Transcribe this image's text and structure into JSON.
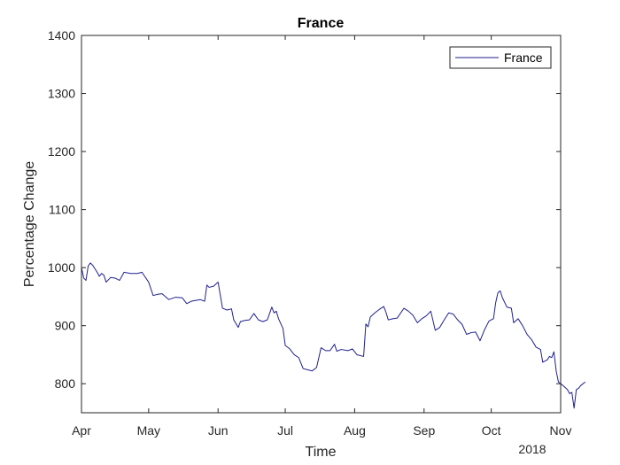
{
  "chart_data": {
    "type": "line",
    "title": "France",
    "xlabel": "Time",
    "ylabel": "Percentage Change",
    "x_year_label": "2018",
    "x_ticks": [
      "Apr",
      "May",
      "Jun",
      "Jul",
      "Aug",
      "Sep",
      "Oct",
      "Nov"
    ],
    "y_ticks": [
      "800",
      "900",
      "1000",
      "1100",
      "1200",
      "1300",
      "1400"
    ],
    "xlim": [
      "2018-04-01",
      "2018-11-01"
    ],
    "ylim": [
      750,
      1400
    ],
    "grid": false,
    "legend_position": "top-right",
    "series": [
      {
        "name": "France",
        "color": "#1f1f8f",
        "points": [
          [
            "2018-04-01",
            1000
          ],
          [
            "2018-04-02",
            982
          ],
          [
            "2018-04-03",
            978
          ],
          [
            "2018-04-04",
            1003
          ],
          [
            "2018-04-05",
            1008
          ],
          [
            "2018-04-06",
            1004
          ],
          [
            "2018-04-08",
            992
          ],
          [
            "2018-04-09",
            985
          ],
          [
            "2018-04-10",
            990
          ],
          [
            "2018-04-11",
            987
          ],
          [
            "2018-04-12",
            975
          ],
          [
            "2018-04-14",
            983
          ],
          [
            "2018-04-16",
            982
          ],
          [
            "2018-04-18",
            978
          ],
          [
            "2018-04-20",
            992
          ],
          [
            "2018-04-23",
            990
          ],
          [
            "2018-04-26",
            990
          ],
          [
            "2018-04-28",
            992
          ],
          [
            "2018-05-01",
            975
          ],
          [
            "2018-05-03",
            952
          ],
          [
            "2018-05-05",
            954
          ],
          [
            "2018-05-07",
            955
          ],
          [
            "2018-05-10",
            945
          ],
          [
            "2018-05-13",
            949
          ],
          [
            "2018-05-16",
            948
          ],
          [
            "2018-05-18",
            938
          ],
          [
            "2018-05-20",
            942
          ],
          [
            "2018-05-24",
            945
          ],
          [
            "2018-05-26",
            942
          ],
          [
            "2018-05-27",
            970
          ],
          [
            "2018-05-28",
            966
          ],
          [
            "2018-05-30",
            968
          ],
          [
            "2018-06-01",
            975
          ],
          [
            "2018-06-03",
            930
          ],
          [
            "2018-06-05",
            927
          ],
          [
            "2018-06-07",
            929
          ],
          [
            "2018-06-08",
            910
          ],
          [
            "2018-06-10",
            897
          ],
          [
            "2018-06-11",
            907
          ],
          [
            "2018-06-13",
            909
          ],
          [
            "2018-06-15",
            910
          ],
          [
            "2018-06-17",
            921
          ],
          [
            "2018-06-19",
            910
          ],
          [
            "2018-06-21",
            907
          ],
          [
            "2018-06-23",
            910
          ],
          [
            "2018-06-25",
            932
          ],
          [
            "2018-06-26",
            922
          ],
          [
            "2018-06-27",
            925
          ],
          [
            "2018-06-28",
            912
          ],
          [
            "2018-06-30",
            895
          ],
          [
            "2018-07-01",
            866
          ],
          [
            "2018-07-03",
            860
          ],
          [
            "2018-07-05",
            850
          ],
          [
            "2018-07-07",
            845
          ],
          [
            "2018-07-09",
            826
          ],
          [
            "2018-07-11",
            824
          ],
          [
            "2018-07-13",
            822
          ],
          [
            "2018-07-15",
            828
          ],
          [
            "2018-07-17",
            862
          ],
          [
            "2018-07-19",
            857
          ],
          [
            "2018-07-21",
            857
          ],
          [
            "2018-07-23",
            868
          ],
          [
            "2018-07-24",
            856
          ],
          [
            "2018-07-26",
            859
          ],
          [
            "2018-07-29",
            857
          ],
          [
            "2018-07-31",
            860
          ],
          [
            "2018-08-02",
            850
          ],
          [
            "2018-08-05",
            847
          ],
          [
            "2018-08-06",
            903
          ],
          [
            "2018-08-07",
            898
          ],
          [
            "2018-08-08",
            915
          ],
          [
            "2018-08-10",
            922
          ],
          [
            "2018-08-12",
            928
          ],
          [
            "2018-08-14",
            933
          ],
          [
            "2018-08-15",
            923
          ],
          [
            "2018-08-16",
            910
          ],
          [
            "2018-08-18",
            912
          ],
          [
            "2018-08-20",
            913
          ],
          [
            "2018-08-23",
            930
          ],
          [
            "2018-08-25",
            925
          ],
          [
            "2018-08-27",
            918
          ],
          [
            "2018-08-29",
            905
          ],
          [
            "2018-08-31",
            912
          ],
          [
            "2018-09-02",
            917
          ],
          [
            "2018-09-04",
            925
          ],
          [
            "2018-09-06",
            892
          ],
          [
            "2018-09-08",
            897
          ],
          [
            "2018-09-10",
            910
          ],
          [
            "2018-09-12",
            922
          ],
          [
            "2018-09-14",
            920
          ],
          [
            "2018-09-16",
            910
          ],
          [
            "2018-09-18",
            902
          ],
          [
            "2018-09-20",
            885
          ],
          [
            "2018-09-22",
            888
          ],
          [
            "2018-09-24",
            889
          ],
          [
            "2018-09-26",
            874
          ],
          [
            "2018-09-28",
            893
          ],
          [
            "2018-09-30",
            908
          ],
          [
            "2018-10-02",
            912
          ],
          [
            "2018-10-03",
            940
          ],
          [
            "2018-10-04",
            957
          ],
          [
            "2018-10-05",
            960
          ],
          [
            "2018-10-06",
            948
          ],
          [
            "2018-10-08",
            932
          ],
          [
            "2018-10-10",
            930
          ],
          [
            "2018-10-11",
            905
          ],
          [
            "2018-10-13",
            912
          ],
          [
            "2018-10-15",
            900
          ],
          [
            "2018-10-17",
            885
          ],
          [
            "2018-10-19",
            876
          ],
          [
            "2018-10-21",
            863
          ],
          [
            "2018-10-23",
            859
          ],
          [
            "2018-10-24",
            837
          ],
          [
            "2018-10-26",
            841
          ],
          [
            "2018-10-27",
            847
          ],
          [
            "2018-10-28",
            845
          ],
          [
            "2018-10-29",
            855
          ],
          [
            "2018-10-30",
            822
          ],
          [
            "2018-10-31",
            803
          ],
          [
            "2018-11-02",
            797
          ],
          [
            "2018-11-04",
            790
          ],
          [
            "2018-11-05",
            783
          ],
          [
            "2018-11-06",
            785
          ],
          [
            "2018-11-07",
            758
          ],
          [
            "2018-11-08",
            790
          ],
          [
            "2018-11-09",
            792
          ],
          [
            "2018-11-10",
            797
          ],
          [
            "2018-11-12",
            803
          ]
        ]
      }
    ]
  }
}
